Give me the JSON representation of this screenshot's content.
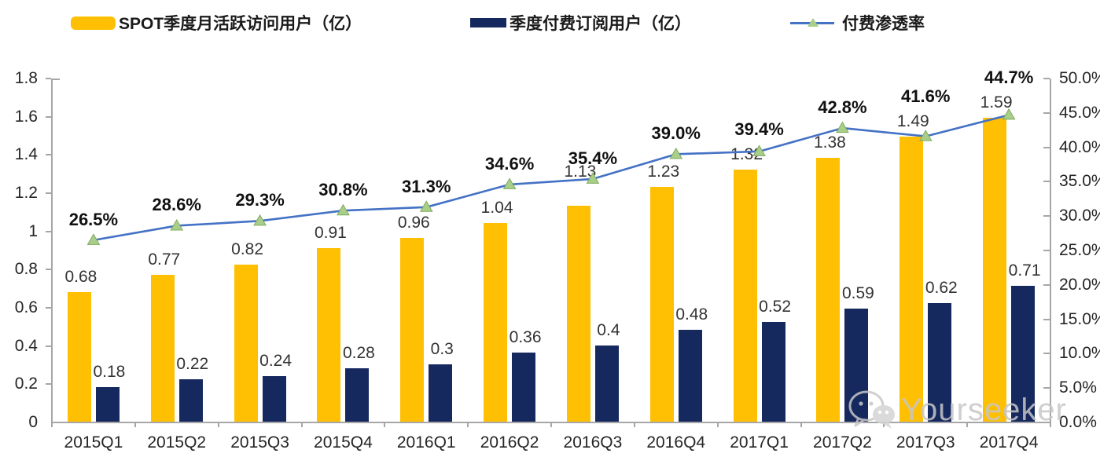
{
  "legend": {
    "items": [
      {
        "label": "SPOT季度月活跃访问用户（亿）",
        "swatch": "yellow-bar"
      },
      {
        "label": "季度付费订阅用户（亿）",
        "swatch": "navy-bar"
      },
      {
        "label": "付费渗透率",
        "swatch": "line-marker"
      }
    ]
  },
  "colors": {
    "mau_bar": "#FFC003",
    "subs_bar": "#16295F",
    "line": "#4472C4",
    "marker_fill": "#A9CE89",
    "marker_stroke": "#7FAB60",
    "axis": "#A6A6A6",
    "value_text": "#333333",
    "pct_text": "#111111",
    "watermark": "#C7C7C7"
  },
  "chart_data": {
    "type": "bar",
    "subtype": "grouped-bars-with-line-combo",
    "title": "",
    "xlabel": "",
    "ylabel": "",
    "grid": false,
    "legend_position": "top",
    "categories": [
      "2015Q1",
      "2015Q2",
      "2015Q3",
      "2015Q4",
      "2016Q1",
      "2016Q2",
      "2016Q3",
      "2016Q4",
      "2017Q1",
      "2017Q2",
      "2017Q3",
      "2017Q4"
    ],
    "series": [
      {
        "name": "SPOT季度月活跃访问用户（亿）",
        "type": "bar",
        "axis": "left",
        "values": [
          0.68,
          0.77,
          0.82,
          0.91,
          0.96,
          1.04,
          1.13,
          1.23,
          1.32,
          1.38,
          1.49,
          1.59
        ],
        "labels": [
          "0.68",
          "0.77",
          "0.82",
          "0.91",
          "0.96",
          "1.04",
          "1.13",
          "1.23",
          "1.32",
          "1.38",
          "1.49",
          "1.59"
        ]
      },
      {
        "name": "季度付费订阅用户（亿）",
        "type": "bar",
        "axis": "left",
        "values": [
          0.18,
          0.22,
          0.24,
          0.28,
          0.3,
          0.36,
          0.4,
          0.48,
          0.52,
          0.59,
          0.62,
          0.71
        ],
        "labels": [
          "0.18",
          "0.22",
          "0.24",
          "0.28",
          "0.3",
          "0.36",
          "0.4",
          "0.48",
          "0.52",
          "0.59",
          "0.62",
          "0.71"
        ]
      },
      {
        "name": "付费渗透率",
        "type": "line",
        "axis": "right",
        "values": [
          26.5,
          28.6,
          29.3,
          30.8,
          31.3,
          34.6,
          35.4,
          39.0,
          39.4,
          42.8,
          41.6,
          44.7
        ],
        "labels": [
          "26.5%",
          "28.6%",
          "29.3%",
          "30.8%",
          "31.3%",
          "34.6%",
          "35.4%",
          "39.0%",
          "39.4%",
          "42.8%",
          "41.6%",
          "44.7%"
        ]
      }
    ],
    "left_axis": {
      "min": 0,
      "max": 1.8,
      "step": 0.2,
      "tick_labels": [
        "0",
        "0.2",
        "0.4",
        "0.6",
        "0.8",
        "1",
        "1.2",
        "1.4",
        "1.6",
        "1.8"
      ]
    },
    "right_axis": {
      "min": 0,
      "max": 50,
      "step": 5,
      "tick_labels": [
        "0.0%",
        "5.0%",
        "10.0%",
        "15.0%",
        "20.0%",
        "25.0%",
        "30.0%",
        "35.0%",
        "40.0%",
        "45.0%",
        "50.0%"
      ]
    },
    "mau_label_extra_dy": [
      0,
      0,
      0,
      0,
      0,
      0,
      -24,
      0,
      0,
      0,
      0,
      0
    ]
  },
  "watermark": {
    "text": "Yourseeker",
    "icon": "wechat-icon"
  }
}
